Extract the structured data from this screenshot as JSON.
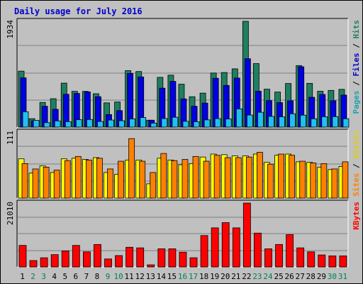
{
  "title": "Daily usage for July 2016",
  "colors": {
    "pages": "#1e8060",
    "files": "#0000e0",
    "hits": "#20c0f0",
    "visits": "#ffff00",
    "sites": "#ff8000",
    "kbytes": "#ff0000",
    "weekend_day": "#00805c",
    "weekday_day": "#000000",
    "label_pages": "#20a0b0",
    "label_files": "#0000cc",
    "label_hits": "#208060",
    "label_sites": "#ff8000",
    "label_visits": "#e0d000",
    "label_kbytes": "#ff0000"
  },
  "chart_data": [
    {
      "type": "bar",
      "panel": "top",
      "max_label": "1934",
      "ylim": [
        0,
        1934
      ],
      "legend": [
        "Pages",
        "Files",
        "Hits"
      ],
      "series": [
        {
          "name": "Hits",
          "values": [
            1023,
            154,
            451,
            519,
            804,
            654,
            653,
            610,
            443,
            459,
            1032,
            1016,
            126,
            909,
            949,
            784,
            555,
            621,
            989,
            998,
            1065,
            1934,
            1161,
            693,
            641,
            797,
            1125,
            800,
            656,
            671,
            690
          ]
        },
        {
          "name": "Files",
          "values": [
            900,
            114,
            381,
            325,
            600,
            615,
            644,
            556,
            229,
            301,
            981,
            917,
            126,
            712,
            836,
            516,
            381,
            439,
            893,
            762,
            897,
            1250,
            656,
            485,
            448,
            481,
            1103,
            545,
            597,
            482,
            585
          ]
        },
        {
          "name": "Pages",
          "values": [
            280,
            124,
            81,
            113,
            100,
            136,
            139,
            103,
            129,
            116,
            149,
            175,
            73,
            156,
            180,
            106,
            98,
            132,
            155,
            148,
            333,
            220,
            271,
            196,
            187,
            244,
            218,
            152,
            189,
            191,
            153
          ]
        }
      ],
      "categories": [
        "1",
        "2",
        "3",
        "4",
        "5",
        "6",
        "7",
        "8",
        "9",
        "10",
        "11",
        "12",
        "13",
        "14",
        "15",
        "16",
        "17",
        "18",
        "19",
        "20",
        "21",
        "22",
        "23",
        "24",
        "25",
        "26",
        "27",
        "28",
        "29",
        "30",
        "31"
      ]
    },
    {
      "type": "bar",
      "panel": "middle",
      "max_label": "111",
      "ylim": [
        0,
        111
      ],
      "legend": [
        "Sites",
        "Visits"
      ],
      "series": [
        {
          "name": "Visits",
          "values": [
            66,
            42,
            54,
            43,
            66,
            67,
            65,
            68,
            43,
            40,
            64,
            64,
            24,
            67,
            64,
            56,
            58,
            69,
            74,
            73,
            71,
            71,
            74,
            60,
            72,
            74,
            61,
            60,
            52,
            48,
            53
          ]
        },
        {
          "name": "Sites",
          "values": [
            58,
            49,
            52,
            47,
            63,
            70,
            64,
            67,
            49,
            62,
            100,
            62,
            43,
            75,
            63,
            65,
            70,
            62,
            72,
            68,
            68,
            69,
            77,
            57,
            74,
            72,
            62,
            59,
            58,
            49,
            61
          ]
        }
      ],
      "categories": [
        "1",
        "2",
        "3",
        "4",
        "5",
        "6",
        "7",
        "8",
        "9",
        "10",
        "11",
        "12",
        "13",
        "14",
        "15",
        "16",
        "17",
        "18",
        "19",
        "20",
        "21",
        "22",
        "23",
        "24",
        "25",
        "26",
        "27",
        "28",
        "29",
        "30",
        "31"
      ]
    },
    {
      "type": "bar",
      "panel": "bottom",
      "max_label": "21010",
      "ylim": [
        0,
        21010
      ],
      "legend": [
        "KBytes"
      ],
      "series": [
        {
          "name": "KBytes",
          "values": [
            7090,
            2106,
            3022,
            4051,
            5268,
            7090,
            4966,
            7393,
            2632,
            3747,
            6482,
            6279,
            696,
            5972,
            5972,
            4868,
            3038,
            10331,
            12864,
            14582,
            12864,
            21010,
            11135,
            5972,
            7393,
            10634,
            6279,
            4966,
            3951,
            3647,
            3647
          ]
        }
      ],
      "categories": [
        "1",
        "2",
        "3",
        "4",
        "5",
        "6",
        "7",
        "8",
        "9",
        "10",
        "11",
        "12",
        "13",
        "14",
        "15",
        "16",
        "17",
        "18",
        "19",
        "20",
        "21",
        "22",
        "23",
        "24",
        "25",
        "26",
        "27",
        "28",
        "29",
        "30",
        "31"
      ]
    }
  ],
  "x_axis": {
    "labels": [
      "1",
      "2",
      "3",
      "4",
      "5",
      "6",
      "7",
      "8",
      "9",
      "10",
      "11",
      "12",
      "13",
      "14",
      "15",
      "16",
      "17",
      "18",
      "19",
      "20",
      "21",
      "22",
      "23",
      "24",
      "25",
      "26",
      "27",
      "28",
      "29",
      "30",
      "31"
    ],
    "weekend": [
      false,
      true,
      true,
      false,
      false,
      false,
      false,
      false,
      true,
      true,
      false,
      false,
      false,
      false,
      false,
      true,
      true,
      false,
      false,
      false,
      false,
      false,
      true,
      true,
      false,
      false,
      false,
      false,
      false,
      true,
      true
    ]
  }
}
